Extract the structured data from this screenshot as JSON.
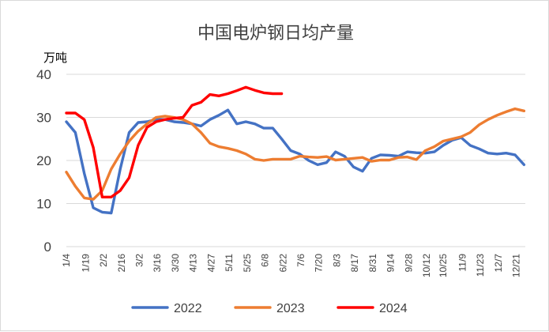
{
  "chart_data": {
    "type": "line",
    "title": "中国电炉钢日均产量",
    "ylabel": "万吨",
    "xlabel": "",
    "ylim": [
      0,
      40
    ],
    "yticks": [
      0,
      10,
      20,
      30,
      40
    ],
    "grid": true,
    "legend": "bottom",
    "xlim": [
      "1/4",
      "12/28"
    ],
    "x_tick_labels": [
      "1/4",
      "1/19",
      "2/2",
      "2/16",
      "3/2",
      "3/16",
      "3/30",
      "4/13",
      "4/27",
      "5/11",
      "5/25",
      "6/8",
      "6/22",
      "7/6",
      "7/20",
      "8/3",
      "8/17",
      "8/31",
      "9/14",
      "9/28",
      "10/12",
      "10/25",
      "11/9",
      "11/23",
      "12/7",
      "12/21"
    ],
    "series": [
      {
        "name": "2022",
        "color": "#4472c4",
        "x": [
          "1/4",
          "1/11",
          "1/18",
          "1/25",
          "2/1",
          "2/8",
          "2/15",
          "2/22",
          "3/1",
          "3/8",
          "3/15",
          "3/22",
          "3/29",
          "4/5",
          "4/12",
          "4/19",
          "4/26",
          "5/3",
          "5/10",
          "5/17",
          "5/24",
          "5/31",
          "6/7",
          "6/14",
          "6/21",
          "6/28",
          "7/5",
          "7/12",
          "7/19",
          "7/26",
          "8/2",
          "8/9",
          "8/16",
          "8/23",
          "8/30",
          "9/6",
          "9/13",
          "9/20",
          "9/27",
          "10/4",
          "10/11",
          "10/18",
          "10/25",
          "11/1",
          "11/8",
          "11/15",
          "11/22",
          "11/29",
          "12/6",
          "12/13",
          "12/20",
          "12/27"
        ],
        "y": [
          29,
          26.5,
          17,
          9,
          8,
          7.8,
          18,
          26.5,
          28.8,
          29,
          29.5,
          29.5,
          29,
          28.8,
          28.5,
          28,
          29.5,
          30.5,
          31.7,
          28.5,
          29,
          28.5,
          27.5,
          27.5,
          25,
          22.3,
          21.5,
          20,
          19,
          19.5,
          22,
          21,
          18.5,
          17.5,
          20.5,
          21.3,
          21.2,
          21,
          22,
          21.8,
          21.7,
          22,
          23.5,
          24.7,
          25.3,
          23.5,
          22.7,
          21.7,
          21.5,
          21.7,
          21.3,
          19
        ]
      },
      {
        "name": "2023",
        "color": "#ed7d31",
        "x": [
          "1/4",
          "1/11",
          "1/18",
          "1/25",
          "2/1",
          "2/8",
          "2/15",
          "2/22",
          "3/1",
          "3/8",
          "3/15",
          "3/22",
          "3/29",
          "4/5",
          "4/12",
          "4/19",
          "4/26",
          "5/3",
          "5/10",
          "5/17",
          "5/24",
          "5/31",
          "6/7",
          "6/14",
          "6/21",
          "6/28",
          "7/5",
          "7/12",
          "7/19",
          "7/26",
          "8/2",
          "8/9",
          "8/16",
          "8/23",
          "8/30",
          "9/6",
          "9/13",
          "9/20",
          "9/27",
          "10/4",
          "10/11",
          "10/18",
          "10/25",
          "11/1",
          "11/8",
          "11/15",
          "11/22",
          "11/29",
          "12/6",
          "12/13",
          "12/20",
          "12/27"
        ],
        "y": [
          17.3,
          14,
          11.3,
          11,
          13,
          18,
          21.5,
          24.5,
          26.8,
          28.5,
          30,
          30.3,
          30,
          29.5,
          28.5,
          26.5,
          24,
          23.2,
          22.8,
          22.3,
          21.5,
          20.3,
          20,
          20.3,
          20.3,
          20.3,
          21,
          20.8,
          20.7,
          20.9,
          20.1,
          20.3,
          20.5,
          20.7,
          19.8,
          20.1,
          20.1,
          20.7,
          20.8,
          20.2,
          22.3,
          23.2,
          24.5,
          25,
          25.5,
          26.5,
          28.3,
          29.5,
          30.5,
          31.3,
          32,
          31.5
        ]
      },
      {
        "name": "2024",
        "color": "#ff0000",
        "x": [
          "1/4",
          "1/11",
          "1/18",
          "1/25",
          "2/1",
          "2/8",
          "2/15",
          "2/22",
          "3/1",
          "3/8",
          "3/15",
          "3/22",
          "3/29",
          "4/5",
          "4/12",
          "4/19",
          "4/26",
          "5/3",
          "5/10",
          "5/17",
          "5/24",
          "5/31",
          "6/7",
          "6/14",
          "6/21"
        ],
        "y": [
          31,
          31,
          29.5,
          23,
          11.5,
          11.5,
          13,
          16,
          23.5,
          27.7,
          29,
          29.5,
          29.8,
          30,
          32.8,
          33.5,
          35.3,
          35,
          35.5,
          36.2,
          37,
          36.3,
          35.7,
          35.5,
          35.5
        ]
      }
    ]
  }
}
